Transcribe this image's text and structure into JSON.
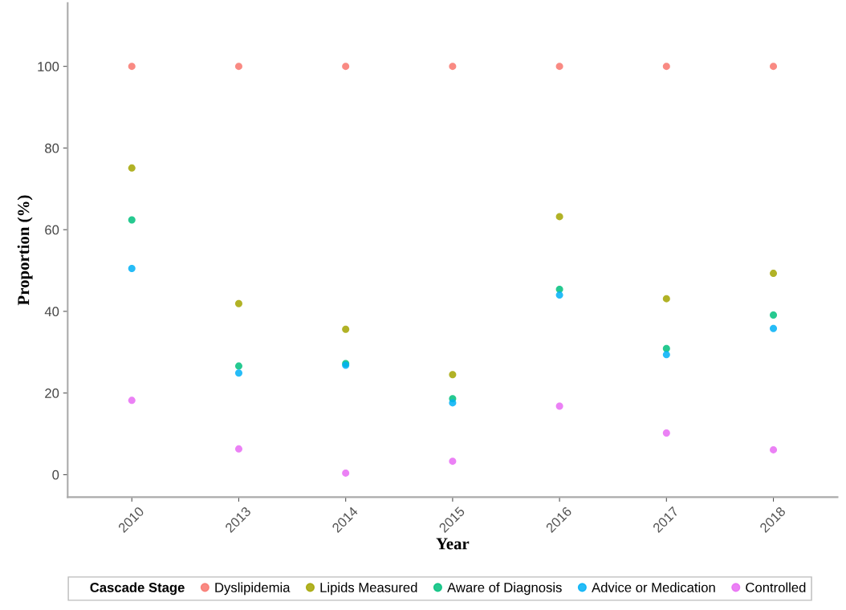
{
  "chart_data": {
    "type": "scatter",
    "xlabel": "Year",
    "ylabel": "Proportion (%)",
    "legend_title": "Cascade Stage",
    "categories": [
      "2010",
      "2013",
      "2014",
      "2015",
      "2016",
      "2017",
      "2018"
    ],
    "series": [
      {
        "name": "Dyslipidemia",
        "color": "#f8766d",
        "values": [
          100,
          100,
          100,
          100,
          100,
          100,
          100
        ]
      },
      {
        "name": "Lipids Measured",
        "color": "#a3a500",
        "values": [
          75.1,
          41.9,
          35.6,
          24.5,
          63.2,
          43.1,
          49.3
        ]
      },
      {
        "name": "Aware of Diagnosis",
        "color": "#00bf7d",
        "values": [
          62.4,
          26.6,
          27.2,
          18.6,
          45.4,
          30.9,
          39.1
        ]
      },
      {
        "name": "Advice or Medication",
        "color": "#00b0f6",
        "values": [
          50.5,
          24.9,
          26.8,
          17.6,
          44.0,
          29.4,
          35.8
        ]
      },
      {
        "name": "Controlled",
        "color": "#e76bf3",
        "values": [
          18.2,
          6.3,
          0.4,
          3.3,
          16.8,
          10.2,
          6.1
        ]
      }
    ],
    "ylim": [
      -5.5,
      115.5
    ],
    "yticks": [
      0,
      20,
      40,
      60,
      80,
      100
    ],
    "grid": false,
    "legend": "bottom",
    "marker": "circle"
  }
}
